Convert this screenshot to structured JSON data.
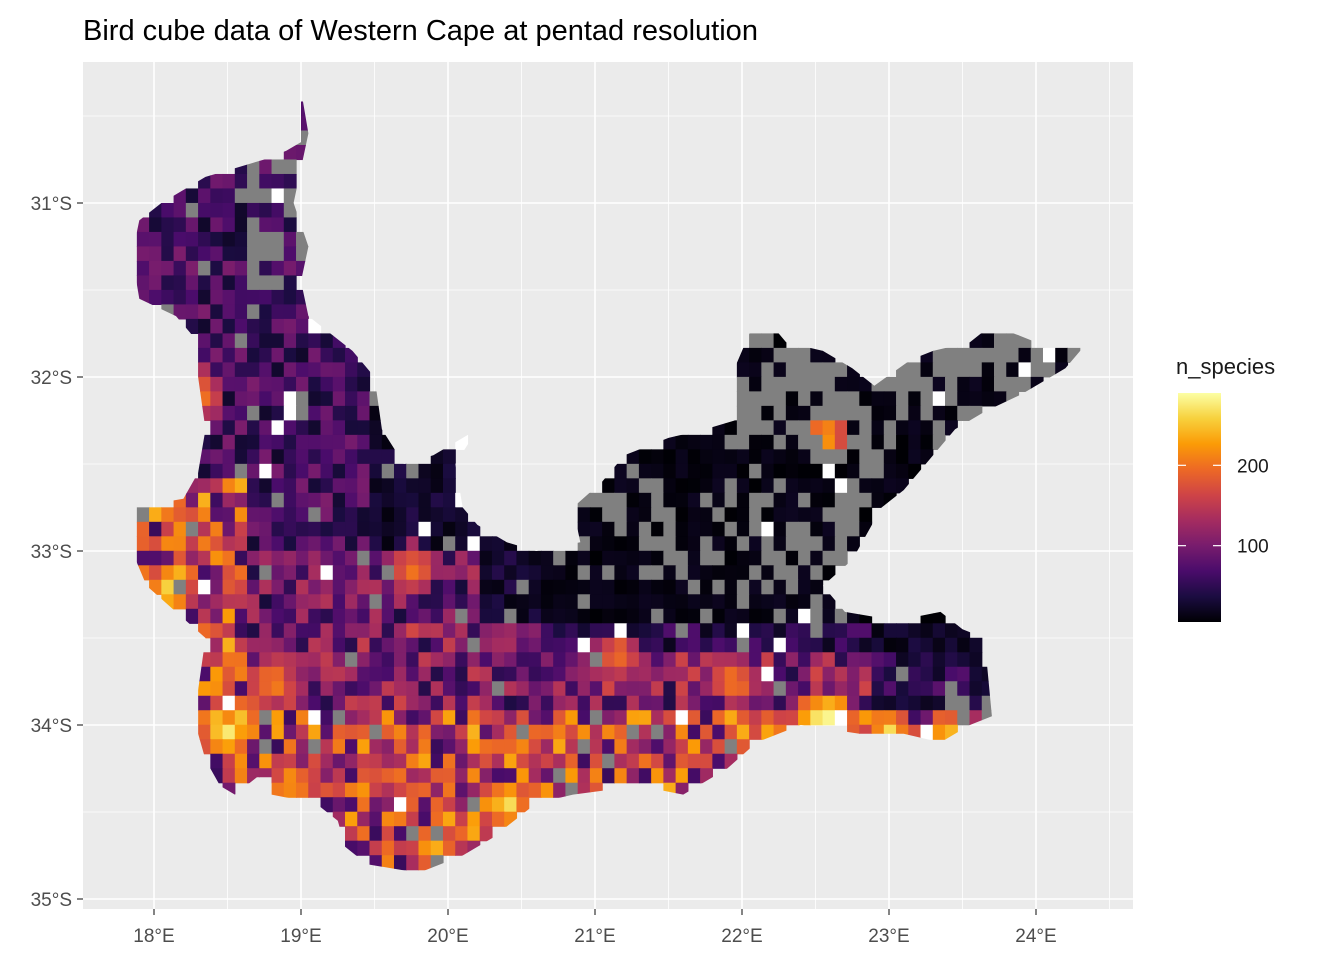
{
  "chart_data": {
    "type": "heatmap",
    "title": "Bird cube data of Western Cape at pentad resolution",
    "xlabel": "",
    "ylabel": "",
    "x_ticks": [
      "18°E",
      "19°E",
      "20°E",
      "21°E",
      "22°E",
      "23°E",
      "24°E"
    ],
    "x_tick_values": [
      18,
      19,
      20,
      21,
      22,
      23,
      24
    ],
    "y_ticks": [
      "31°S",
      "32°S",
      "33°S",
      "34°S",
      "35°S"
    ],
    "y_tick_values": [
      -31,
      -32,
      -33,
      -34,
      -35
    ],
    "xlim": [
      17.5,
      24.7
    ],
    "ylim": [
      -35.05,
      -30.2
    ],
    "grid": true,
    "cell_size_deg": 0.0833,
    "legend": {
      "title": "n_species",
      "position": "right",
      "ticks": [
        "100",
        "200"
      ],
      "tick_values": [
        100,
        200
      ],
      "range": [
        5,
        290
      ],
      "colormap": "inferno",
      "na_color": "#808080"
    },
    "colors": {
      "panel_background": "#ebebeb",
      "grid": "#ffffff",
      "missing_cells": "#808080",
      "inferno_stops": [
        "#000004",
        "#1b0c41",
        "#4a0c6b",
        "#781c6d",
        "#a52c60",
        "#cf4446",
        "#ed6925",
        "#fb9b06",
        "#f7d13d",
        "#fcffa4"
      ]
    },
    "region": {
      "name": "Western Cape",
      "outline_lon_lat": [
        [
          19.0,
          -30.35
        ],
        [
          19.0,
          -30.65
        ],
        [
          18.9,
          -30.7
        ],
        [
          18.75,
          -30.75
        ],
        [
          18.55,
          -30.8
        ],
        [
          18.35,
          -30.85
        ],
        [
          18.05,
          -31.0
        ],
        [
          17.9,
          -31.1
        ],
        [
          17.85,
          -31.3
        ],
        [
          17.9,
          -31.55
        ],
        [
          18.15,
          -31.65
        ],
        [
          18.25,
          -31.75
        ],
        [
          18.3,
          -32.0
        ],
        [
          18.35,
          -32.3
        ],
        [
          18.3,
          -32.55
        ],
        [
          18.2,
          -32.7
        ],
        [
          17.85,
          -32.75
        ],
        [
          17.85,
          -33.0
        ],
        [
          17.95,
          -33.2
        ],
        [
          18.15,
          -33.35
        ],
        [
          18.35,
          -33.5
        ],
        [
          18.3,
          -33.8
        ],
        [
          18.3,
          -34.05
        ],
        [
          18.35,
          -34.2
        ],
        [
          18.45,
          -34.35
        ],
        [
          18.55,
          -34.4
        ],
        [
          18.7,
          -34.3
        ],
        [
          18.8,
          -34.3
        ],
        [
          18.8,
          -34.4
        ],
        [
          19.1,
          -34.45
        ],
        [
          19.25,
          -34.55
        ],
        [
          19.3,
          -34.7
        ],
        [
          19.45,
          -34.8
        ],
        [
          19.8,
          -34.85
        ],
        [
          20.1,
          -34.75
        ],
        [
          20.3,
          -34.65
        ],
        [
          20.45,
          -34.55
        ],
        [
          20.6,
          -34.45
        ],
        [
          20.85,
          -34.4
        ],
        [
          21.3,
          -34.35
        ],
        [
          21.6,
          -34.4
        ],
        [
          21.9,
          -34.25
        ],
        [
          22.1,
          -34.1
        ],
        [
          22.4,
          -34.0
        ],
        [
          22.8,
          -34.05
        ],
        [
          23.1,
          -34.05
        ],
        [
          23.35,
          -34.1
        ],
        [
          23.55,
          -34.0
        ],
        [
          23.7,
          -33.95
        ],
        [
          23.65,
          -33.5
        ],
        [
          23.5,
          -33.45
        ],
        [
          23.35,
          -33.35
        ],
        [
          23.05,
          -33.4
        ],
        [
          22.7,
          -33.35
        ],
        [
          22.55,
          -33.2
        ],
        [
          22.75,
          -33.05
        ],
        [
          22.85,
          -32.9
        ],
        [
          22.95,
          -32.75
        ],
        [
          23.1,
          -32.65
        ],
        [
          23.3,
          -32.45
        ],
        [
          23.45,
          -32.3
        ],
        [
          23.65,
          -32.2
        ],
        [
          23.9,
          -32.1
        ],
        [
          24.2,
          -31.95
        ],
        [
          24.35,
          -31.8
        ],
        [
          24.15,
          -31.8
        ],
        [
          24.0,
          -31.8
        ],
        [
          23.7,
          -31.7
        ],
        [
          23.55,
          -31.8
        ],
        [
          23.3,
          -31.85
        ],
        [
          23.15,
          -31.9
        ],
        [
          22.9,
          -32.05
        ],
        [
          22.75,
          -31.95
        ],
        [
          22.55,
          -31.85
        ],
        [
          22.3,
          -31.8
        ],
        [
          22.2,
          -31.7
        ],
        [
          22.05,
          -31.75
        ],
        [
          21.95,
          -31.95
        ],
        [
          21.95,
          -32.25
        ],
        [
          21.75,
          -32.3
        ],
        [
          21.5,
          -32.35
        ],
        [
          21.2,
          -32.45
        ],
        [
          21.05,
          -32.6
        ],
        [
          20.85,
          -32.75
        ],
        [
          20.9,
          -32.95
        ],
        [
          20.6,
          -33.0
        ],
        [
          20.4,
          -32.95
        ],
        [
          20.2,
          -32.85
        ],
        [
          20.1,
          -32.75
        ],
        [
          20.05,
          -32.5
        ],
        [
          20.2,
          -32.3
        ],
        [
          19.9,
          -32.45
        ],
        [
          19.7,
          -32.5
        ],
        [
          19.55,
          -32.3
        ],
        [
          19.5,
          -32.0
        ],
        [
          19.35,
          -31.85
        ],
        [
          19.2,
          -31.75
        ],
        [
          19.05,
          -31.65
        ],
        [
          19.0,
          -31.45
        ],
        [
          19.05,
          -31.25
        ],
        [
          18.95,
          -31.0
        ],
        [
          19.0,
          -30.8
        ],
        [
          19.05,
          -30.6
        ]
      ]
    },
    "hotspots": [
      {
        "lon": 18.5,
        "lat": -34.05,
        "n_species": 280
      },
      {
        "lon": 18.45,
        "lat": -34.0,
        "n_species": 260
      },
      {
        "lon": 18.6,
        "lat": -33.95,
        "n_species": 240
      },
      {
        "lon": 18.95,
        "lat": -34.35,
        "n_species": 230
      },
      {
        "lon": 18.1,
        "lat": -33.2,
        "n_species": 250
      },
      {
        "lon": 18.2,
        "lat": -32.85,
        "n_species": 220
      },
      {
        "lon": 20.4,
        "lat": -34.45,
        "n_species": 270
      },
      {
        "lon": 19.9,
        "lat": -34.7,
        "n_species": 240
      },
      {
        "lon": 20.5,
        "lat": -34.1,
        "n_species": 220
      },
      {
        "lon": 21.15,
        "lat": -33.6,
        "n_species": 200
      },
      {
        "lon": 22.6,
        "lat": -33.95,
        "n_species": 285
      },
      {
        "lon": 22.5,
        "lat": -33.95,
        "n_species": 260
      },
      {
        "lon": 22.55,
        "lat": -32.35,
        "n_species": 240
      },
      {
        "lon": 23.4,
        "lat": -34.05,
        "n_species": 250
      },
      {
        "lon": 23.0,
        "lat": -34.05,
        "n_species": 260
      },
      {
        "lon": 22.2,
        "lat": -34.05,
        "n_species": 230
      },
      {
        "lon": 18.8,
        "lat": -33.75,
        "n_species": 220
      },
      {
        "lon": 18.3,
        "lat": -32.1,
        "n_species": 210
      },
      {
        "lon": 19.75,
        "lat": -33.1,
        "n_species": 210
      },
      {
        "lon": 21.95,
        "lat": -33.75,
        "n_species": 210
      }
    ]
  }
}
